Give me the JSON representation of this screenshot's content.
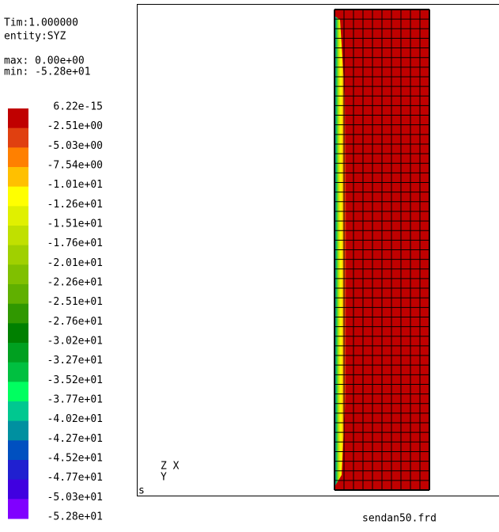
{
  "header": {
    "time": "Tim:1.000000",
    "entity": "entity:SYZ",
    "max": "max: 0.00e+00",
    "min": "min: -5.28e+01"
  },
  "legend": {
    "labels": [
      "6.22e-15",
      "-2.51e+00",
      "-5.03e+00",
      "-7.54e+00",
      "-1.01e+01",
      "-1.26e+01",
      "-1.51e+01",
      "-1.76e+01",
      "-2.01e+01",
      "-2.26e+01",
      "-2.51e+01",
      "-2.76e+01",
      "-3.02e+01",
      "-3.27e+01",
      "-3.52e+01",
      "-3.77e+01",
      "-4.02e+01",
      "-4.27e+01",
      "-4.52e+01",
      "-4.77e+01",
      "-5.03e+01",
      "-5.28e+01"
    ],
    "colors": [
      "#c00000",
      "#e04010",
      "#ff8000",
      "#ffc000",
      "#ffff00",
      "#e0f000",
      "#c0e000",
      "#a0d000",
      "#80c000",
      "#60b000",
      "#309800",
      "#008000",
      "#00a020",
      "#00c040",
      "#00ff60",
      "#00c890",
      "#0090a0",
      "#0050c0",
      "#2020d0",
      "#4000e0",
      "#8000ff"
    ]
  },
  "triad": {
    "top": "Z X",
    "bottom": "Y"
  },
  "corner": "s",
  "filename": "sendan50.frd"
}
